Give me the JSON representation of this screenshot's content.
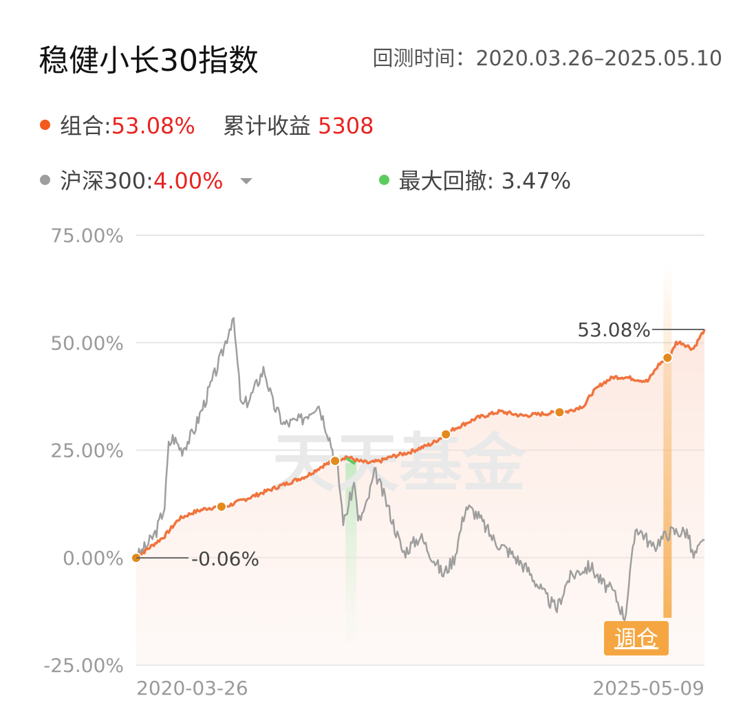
{
  "header": {
    "title": "稳健小长30指数",
    "period_label": "回测时间：2020.03.26–2025.05.10"
  },
  "legend": {
    "portfolio_label": "组合:",
    "portfolio_value": "53.08%",
    "cumulative_label": "累计收益",
    "cumulative_value": "5308",
    "benchmark_label": "沪深300:",
    "benchmark_value": "4.00%",
    "drawdown_label": "最大回撤:",
    "drawdown_value": "3.47%"
  },
  "colors": {
    "portfolio": "#f0743e",
    "benchmark": "#9e9e9e",
    "drawdown": "#5ccb5f",
    "marker": "#e38a1c",
    "rebalance": "#f5a641",
    "accent_red": "#e8231f"
  },
  "watermark": "天天基金",
  "rebalance_label": "调仓",
  "chart_data": {
    "type": "line",
    "x_start_label": "2020-03-26",
    "x_end_label": "2025-05-09",
    "ylim": [
      -25,
      75
    ],
    "yticks": [
      "75.00%",
      "50.00%",
      "25.00%",
      "0.00%",
      "-25.00%"
    ],
    "ytick_values": [
      75,
      50,
      25,
      0,
      -25
    ],
    "grid": true,
    "annotations": [
      {
        "text": "53.08%",
        "value": 53.08
      },
      {
        "text": "-0.06%",
        "value": -0.06
      }
    ],
    "series": [
      {
        "name": "组合",
        "t": [
          0,
          0.02,
          0.05,
          0.075,
          0.1,
          0.125,
          0.16,
          0.2,
          0.24,
          0.27,
          0.3,
          0.33,
          0.35,
          0.37,
          0.39,
          0.41,
          0.43,
          0.45,
          0.48,
          0.52,
          0.56,
          0.6,
          0.64,
          0.68,
          0.72,
          0.76,
          0.79,
          0.8,
          0.82,
          0.84,
          0.86,
          0.88,
          0.9,
          0.92,
          0.94,
          0.95,
          0.96,
          0.98,
          1.0
        ],
        "values": [
          -0.06,
          2,
          5,
          9,
          10.5,
          11.5,
          12,
          14,
          16,
          17.5,
          19,
          21.5,
          22.5,
          23.5,
          22.5,
          22,
          22.5,
          23.5,
          24.5,
          26.5,
          30,
          32.5,
          34,
          33,
          33.5,
          34,
          35.5,
          38,
          40.5,
          42,
          42,
          41.5,
          41,
          45,
          47,
          50,
          50,
          48.5,
          53.08
        ]
      },
      {
        "name": "沪深300",
        "t": [
          0,
          0.02,
          0.035,
          0.05,
          0.057,
          0.065,
          0.08,
          0.1,
          0.12,
          0.15,
          0.17,
          0.175,
          0.185,
          0.2,
          0.225,
          0.24,
          0.26,
          0.29,
          0.32,
          0.34,
          0.355,
          0.365,
          0.385,
          0.39,
          0.405,
          0.42,
          0.44,
          0.47,
          0.5,
          0.54,
          0.56,
          0.58,
          0.6,
          0.63,
          0.66,
          0.69,
          0.72,
          0.74,
          0.76,
          0.78,
          0.8,
          0.82,
          0.84,
          0.86,
          0.88,
          0.885,
          0.89,
          0.91,
          0.92,
          0.94,
          0.95,
          0.97,
          0.98,
          1.0
        ],
        "values": [
          0,
          3,
          6,
          12,
          26,
          28,
          25,
          29,
          36,
          47,
          56,
          50,
          35,
          37,
          44,
          36,
          31,
          32,
          36,
          28,
          20,
          8,
          18,
          8,
          12,
          20,
          13,
          1,
          5,
          -4,
          0,
          12,
          10,
          4,
          1,
          -3,
          -9,
          -12,
          -5,
          -3,
          -2,
          -6,
          -8,
          -14,
          8,
          6,
          6,
          2,
          4,
          6,
          6,
          6,
          0,
          4
        ]
      }
    ],
    "markers_t": [
      0,
      0.15,
      0.35,
      0.545,
      0.745,
      0.935
    ]
  }
}
